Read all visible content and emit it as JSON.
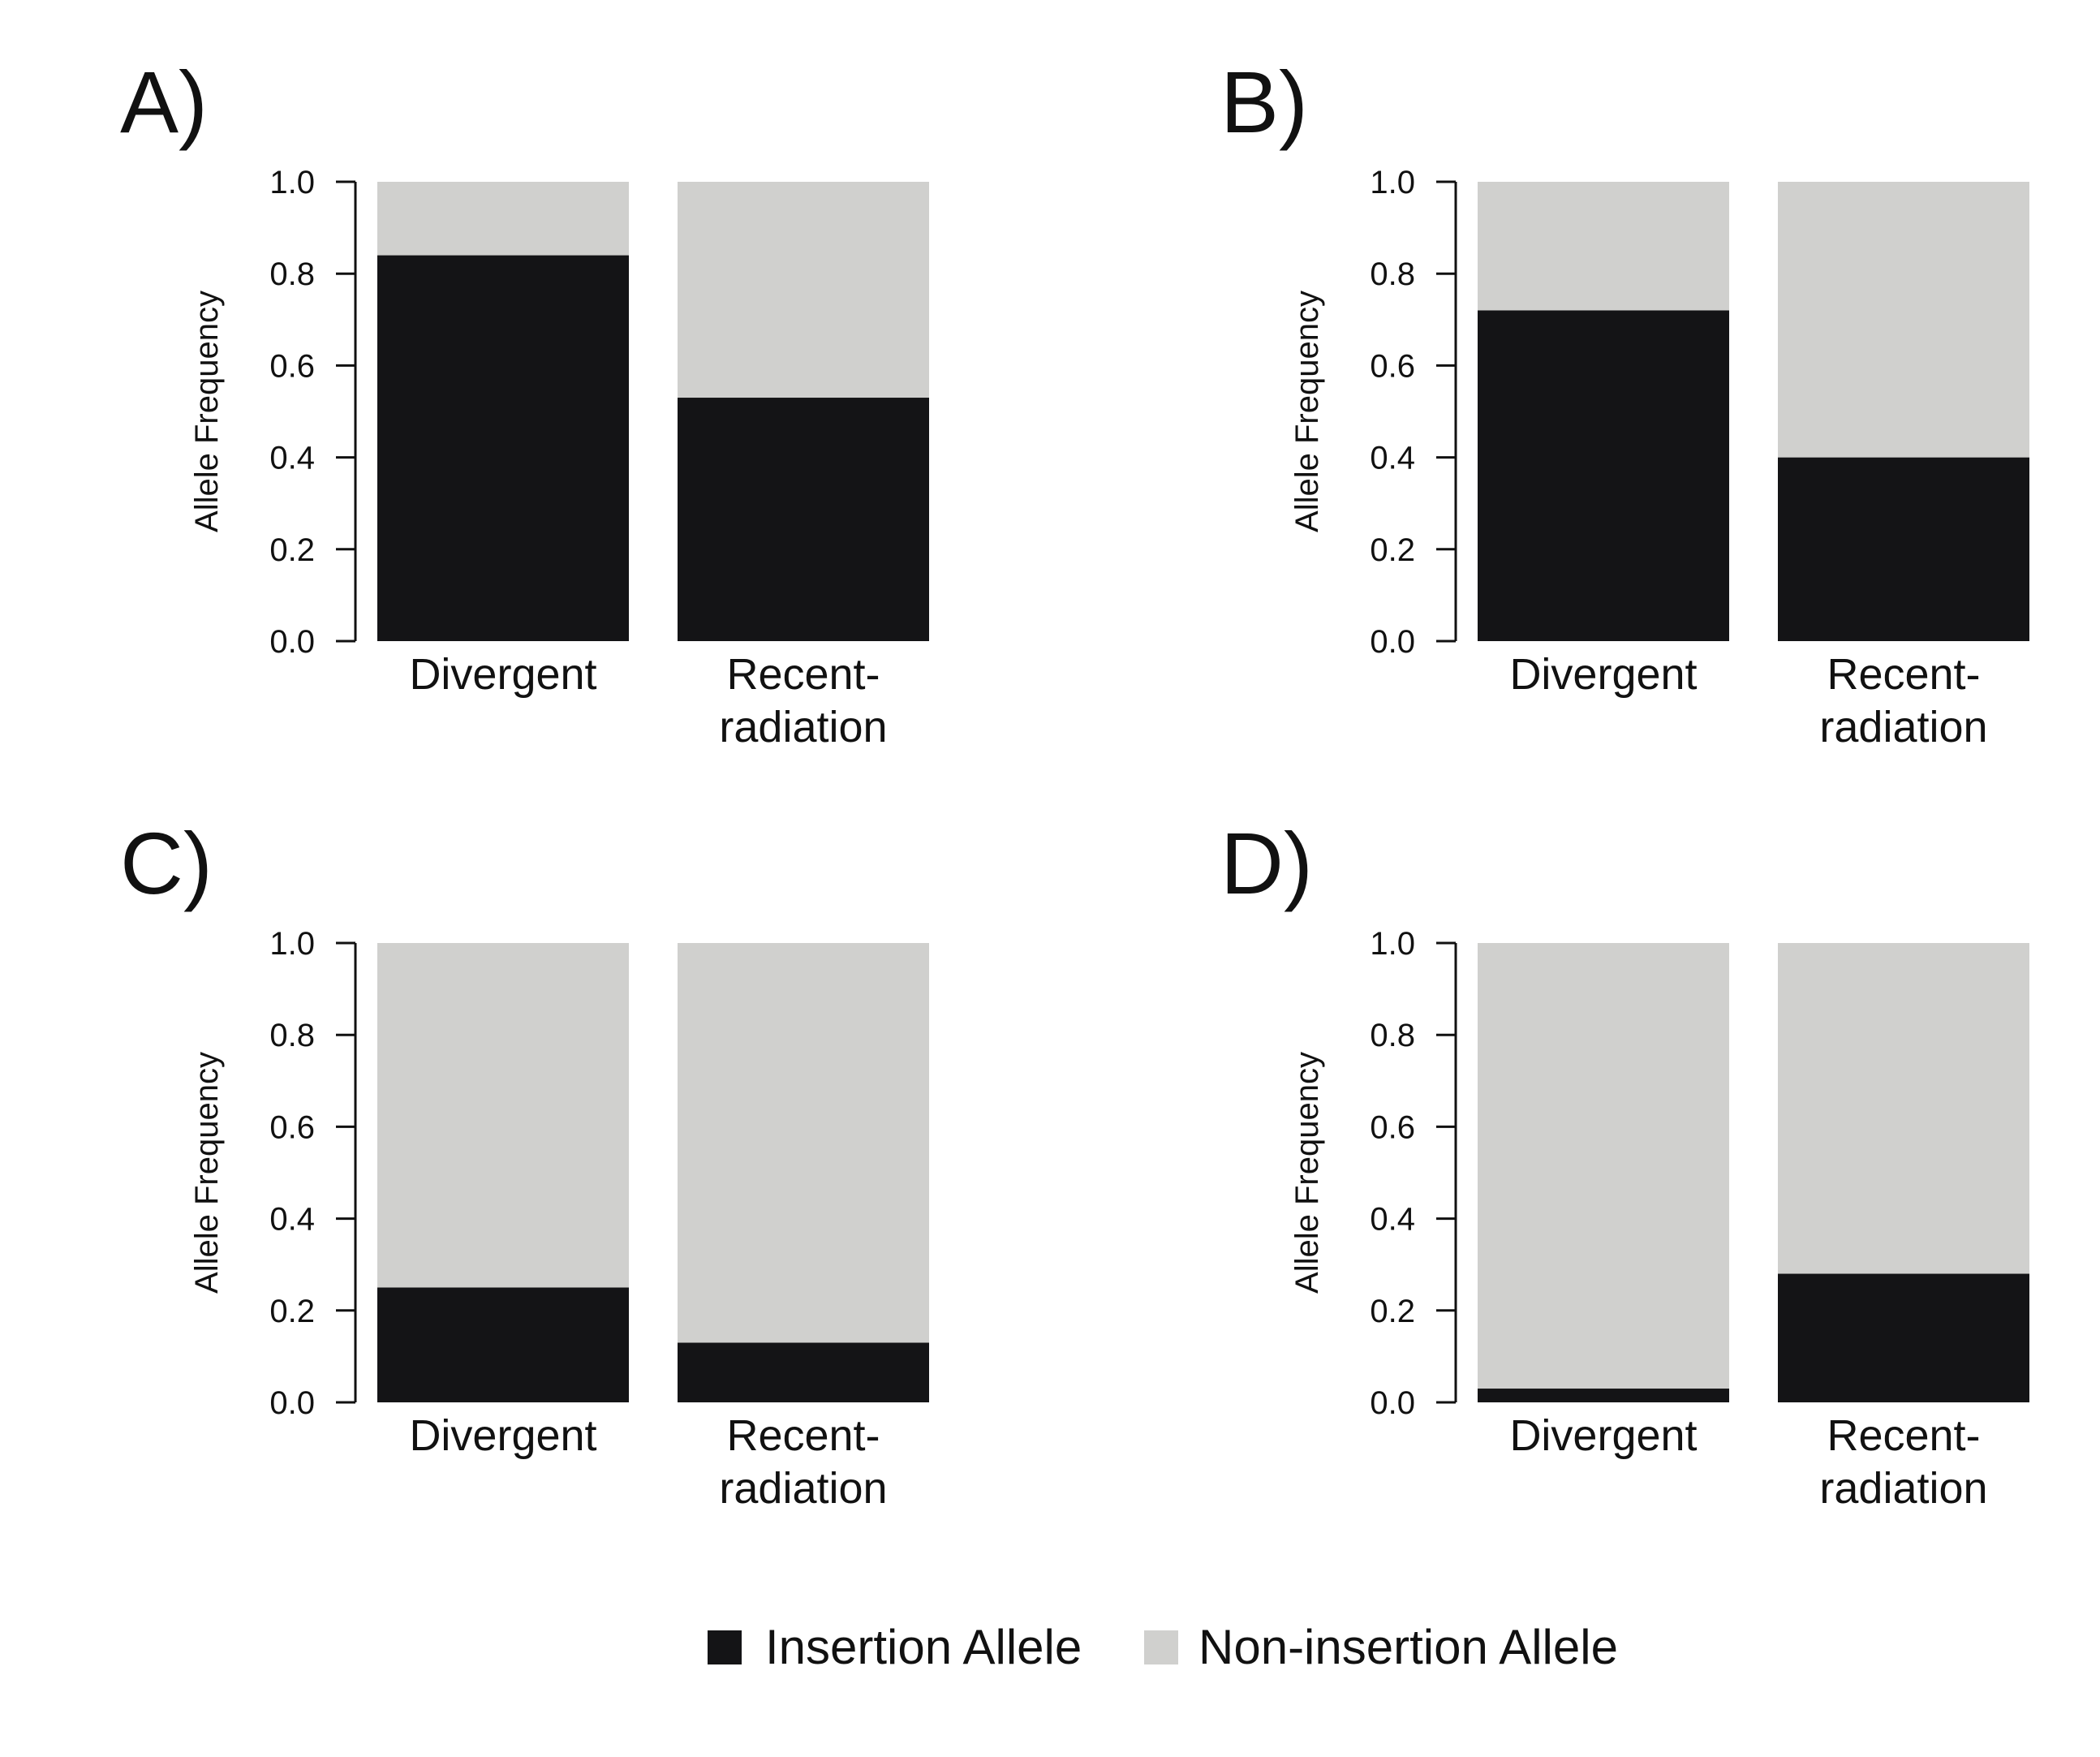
{
  "colors": {
    "insertion": "#141416",
    "non_insertion": "#d0d0ce",
    "axis": "#111111"
  },
  "chart_data": [
    {
      "type": "bar",
      "stacked": true,
      "panel": "A)",
      "ylabel": "Allele Frequency",
      "ylim": [
        0,
        1
      ],
      "yticks": [
        "0.0",
        "0.2",
        "0.4",
        "0.6",
        "0.8",
        "1.0"
      ],
      "categories": [
        [
          "Divergent"
        ],
        [
          "Recent-",
          "radiation"
        ]
      ],
      "series": [
        {
          "name": "Insertion Allele",
          "values": [
            0.84,
            0.53
          ]
        },
        {
          "name": "Non-insertion Allele",
          "values": [
            0.16,
            0.47
          ]
        }
      ]
    },
    {
      "type": "bar",
      "stacked": true,
      "panel": "B)",
      "ylabel": "Allele Frequency",
      "ylim": [
        0,
        1
      ],
      "yticks": [
        "0.0",
        "0.2",
        "0.4",
        "0.6",
        "0.8",
        "1.0"
      ],
      "categories": [
        [
          "Divergent"
        ],
        [
          "Recent-",
          "radiation"
        ]
      ],
      "series": [
        {
          "name": "Insertion Allele",
          "values": [
            0.72,
            0.4
          ]
        },
        {
          "name": "Non-insertion Allele",
          "values": [
            0.28,
            0.6
          ]
        }
      ]
    },
    {
      "type": "bar",
      "stacked": true,
      "panel": "C)",
      "ylabel": "Allele Frequency",
      "ylim": [
        0,
        1
      ],
      "yticks": [
        "0.0",
        "0.2",
        "0.4",
        "0.6",
        "0.8",
        "1.0"
      ],
      "categories": [
        [
          "Divergent"
        ],
        [
          "Recent-",
          "radiation"
        ]
      ],
      "series": [
        {
          "name": "Insertion Allele",
          "values": [
            0.25,
            0.13
          ]
        },
        {
          "name": "Non-insertion Allele",
          "values": [
            0.75,
            0.87
          ]
        }
      ]
    },
    {
      "type": "bar",
      "stacked": true,
      "panel": "D)",
      "ylabel": "Allele Frequency",
      "ylim": [
        0,
        1
      ],
      "yticks": [
        "0.0",
        "0.2",
        "0.4",
        "0.6",
        "0.8",
        "1.0"
      ],
      "categories": [
        [
          "Divergent"
        ],
        [
          "Recent-",
          "radiation"
        ]
      ],
      "series": [
        {
          "name": "Insertion Allele",
          "values": [
            0.03,
            0.28
          ]
        },
        {
          "name": "Non-insertion Allele",
          "values": [
            0.97,
            0.72
          ]
        }
      ]
    }
  ],
  "legend": {
    "position": "bottom-center",
    "items": [
      "Insertion Allele",
      "Non-insertion Allele"
    ]
  }
}
